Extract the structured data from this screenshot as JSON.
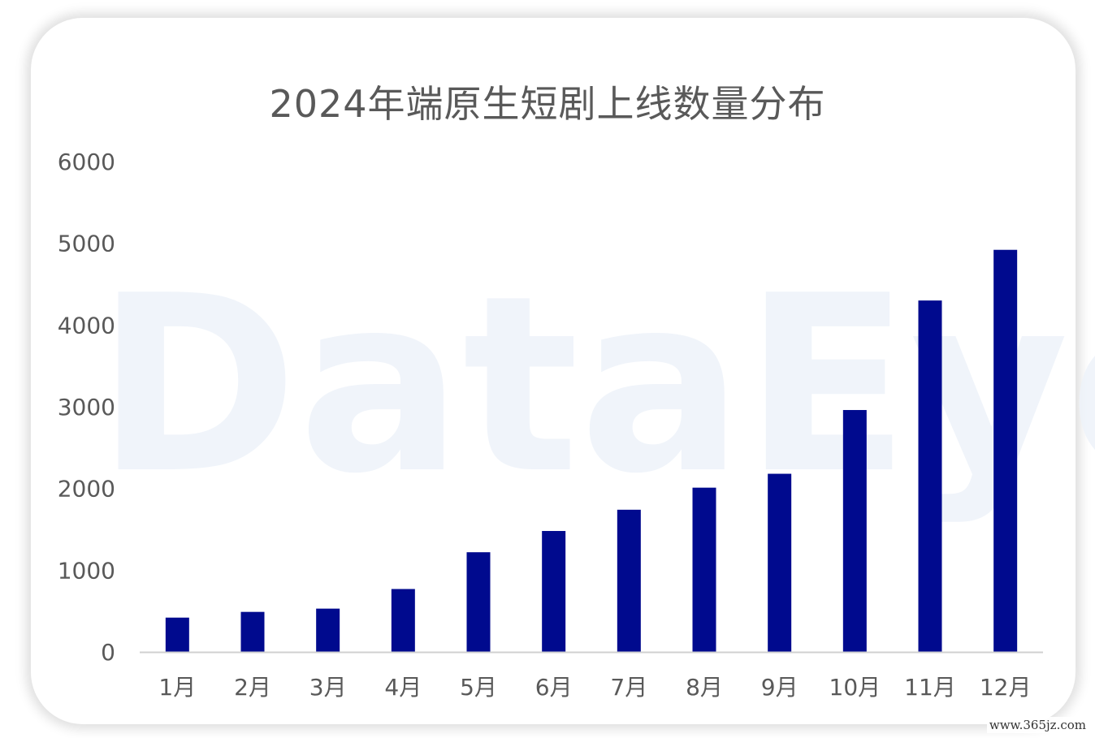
{
  "chart_data": {
    "type": "bar",
    "title": "2024年端原生短剧上线数量分布",
    "categories": [
      "1月",
      "2月",
      "3月",
      "4月",
      "5月",
      "6月",
      "7月",
      "8月",
      "9月",
      "10月",
      "11月",
      "12月"
    ],
    "values": [
      420,
      490,
      530,
      770,
      1220,
      1480,
      1740,
      2010,
      2180,
      2960,
      4300,
      4920
    ],
    "ylim": [
      0,
      6000
    ],
    "yticks": [
      "0",
      "1000",
      "2000",
      "3000",
      "4000",
      "5000",
      "6000"
    ],
    "xlabel": "",
    "ylabel": "",
    "grid": false,
    "legend": "none",
    "bar_color": "#000A8E"
  },
  "watermark": "DataEye",
  "footer": {
    "url": "www.365jz.com"
  }
}
